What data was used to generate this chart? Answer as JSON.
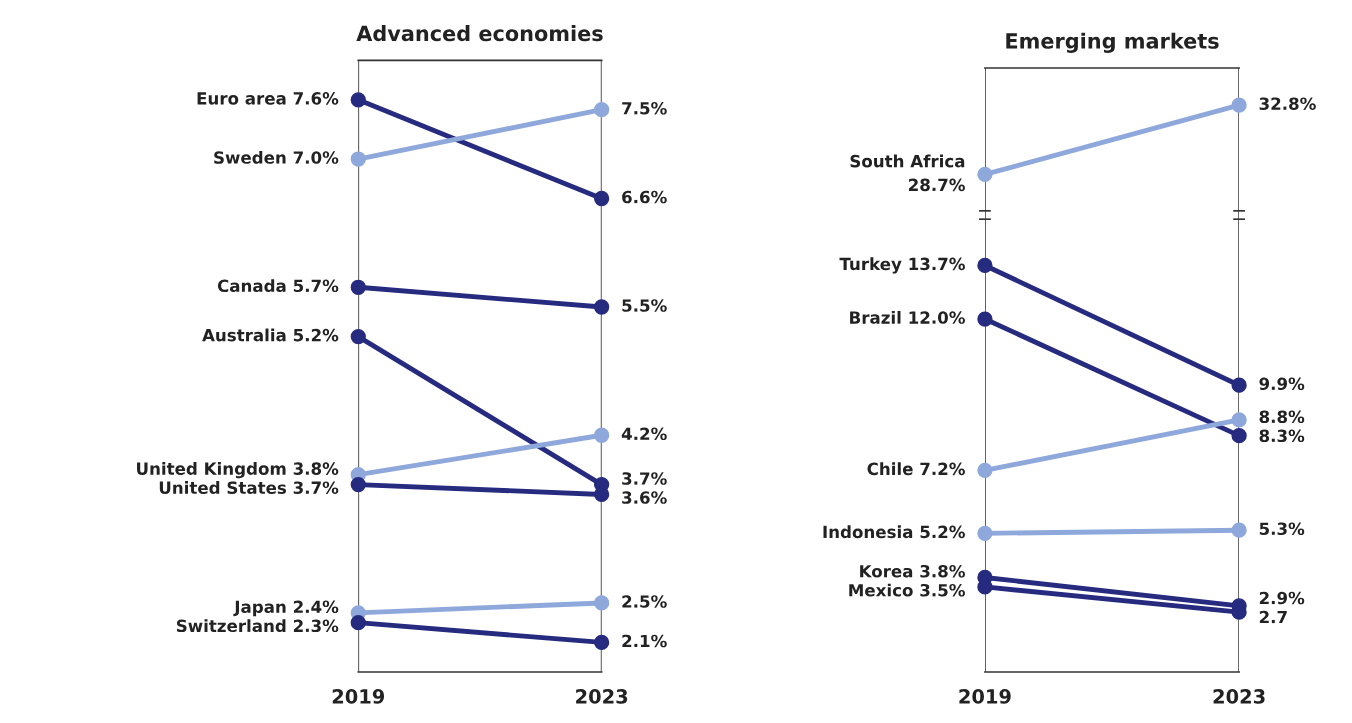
{
  "chart_data": [
    {
      "type": "line",
      "title": "Advanced economies",
      "categories": [
        "2019",
        "2023"
      ],
      "ylim": [
        1.8,
        8.0
      ],
      "tick_labels": "x",
      "grid": "x",
      "legend": false,
      "marker": "circle",
      "line_style": "solid",
      "series": [
        {
          "name": "Euro area",
          "color": "#262b7f",
          "values": [
            7.6,
            6.6
          ],
          "value_labels": [
            "7.6%",
            "6.6%"
          ]
        },
        {
          "name": "Sweden",
          "color": "#8fa8dc",
          "values": [
            7.0,
            7.5
          ],
          "value_labels": [
            "7.0%",
            "7.5%"
          ]
        },
        {
          "name": "Canada",
          "color": "#262b7f",
          "values": [
            5.7,
            5.5
          ],
          "value_labels": [
            "5.7%",
            "5.5%"
          ]
        },
        {
          "name": "Australia",
          "color": "#262b7f",
          "values": [
            5.2,
            3.7
          ],
          "value_labels": [
            "5.2%",
            "3.7%"
          ]
        },
        {
          "name": "United Kingdom",
          "color": "#8fa8dc",
          "values": [
            3.8,
            4.2
          ],
          "value_labels": [
            "3.8%",
            "4.2%"
          ]
        },
        {
          "name": "United States",
          "color": "#262b7f",
          "values": [
            3.7,
            3.6
          ],
          "value_labels": [
            "3.7%",
            "3.6%"
          ]
        },
        {
          "name": "Japan",
          "color": "#8fa8dc",
          "values": [
            2.4,
            2.5
          ],
          "value_labels": [
            "2.4%",
            "2.5%"
          ]
        },
        {
          "name": "Switzerland",
          "color": "#262b7f",
          "values": [
            2.3,
            2.1
          ],
          "value_labels": [
            "2.3%",
            "2.1%"
          ]
        }
      ]
    },
    {
      "type": "line",
      "title": "Emerging markets",
      "categories": [
        null,
        null
      ],
      "ylim": [
        26.3,
        35.0
      ],
      "tick_labels": false,
      "grid": "x",
      "legend": false,
      "marker": "circle",
      "line_style": "solid",
      "series": [
        {
          "name": "South Africa",
          "color": "#8fa8dc",
          "values": [
            28.7,
            32.8
          ],
          "value_labels": [
            "28.7%",
            "32.8%"
          ]
        }
      ]
    },
    {
      "type": "line",
      "categories": [
        "2019",
        "2023"
      ],
      "ylim": [
        0.8,
        15.3
      ],
      "tick_labels": "x",
      "grid": "x",
      "legend": false,
      "marker": "circle",
      "line_style": "solid",
      "series": [
        {
          "name": "Turkey",
          "color": "#262b7f",
          "values": [
            13.7,
            9.9
          ],
          "value_labels": [
            "13.7%",
            "9.9%"
          ]
        },
        {
          "name": "Brazil",
          "color": "#262b7f",
          "values": [
            12.0,
            8.3
          ],
          "value_labels": [
            "12.0%",
            "8.3%"
          ]
        },
        {
          "name": "Chile",
          "color": "#8fa8dc",
          "values": [
            7.2,
            8.8
          ],
          "value_labels": [
            "7.2%",
            "8.8%"
          ]
        },
        {
          "name": "Indonesia",
          "color": "#8fa8dc",
          "values": [
            5.2,
            5.3
          ],
          "value_labels": [
            "5.2%",
            "5.3%"
          ]
        },
        {
          "name": "Korea",
          "color": "#262b7f",
          "values": [
            3.8,
            2.9
          ],
          "value_labels": [
            "3.8%",
            "2.9%"
          ]
        },
        {
          "name": "Mexico",
          "color": "#262b7f",
          "values": [
            3.5,
            2.7
          ],
          "value_labels": [
            "3.5%",
            "2.7"
          ]
        }
      ]
    }
  ]
}
